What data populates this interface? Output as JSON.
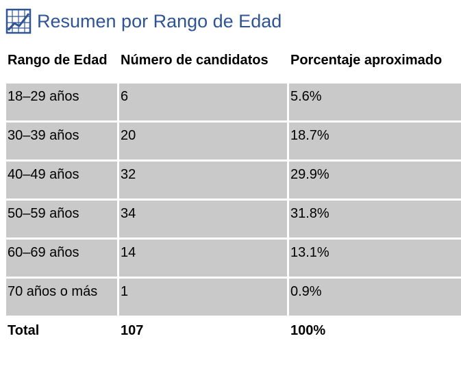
{
  "heading": {
    "title": "Resumen por Rango de Edad",
    "icon": "line-chart-icon",
    "color": "#2f5496"
  },
  "table": {
    "columns": [
      "Rango de Edad",
      "Número de candidatos",
      "Porcentaje aproximado"
    ],
    "rows": [
      {
        "range": "18–29 años",
        "count": "6",
        "percent": "5.6%"
      },
      {
        "range": "30–39 años",
        "count": "20",
        "percent": "18.7%"
      },
      {
        "range": "40–49 años",
        "count": "32",
        "percent": "29.9%"
      },
      {
        "range": "50–59 años",
        "count": "34",
        "percent": "31.8%"
      },
      {
        "range": "60–69 años",
        "count": "14",
        "percent": "13.1%"
      },
      {
        "range": "70 años o más",
        "count": "1",
        "percent": "0.9%"
      }
    ],
    "total": {
      "label": "Total",
      "count": "107",
      "percent": "100%"
    },
    "row_color": "#c9c9c9"
  }
}
